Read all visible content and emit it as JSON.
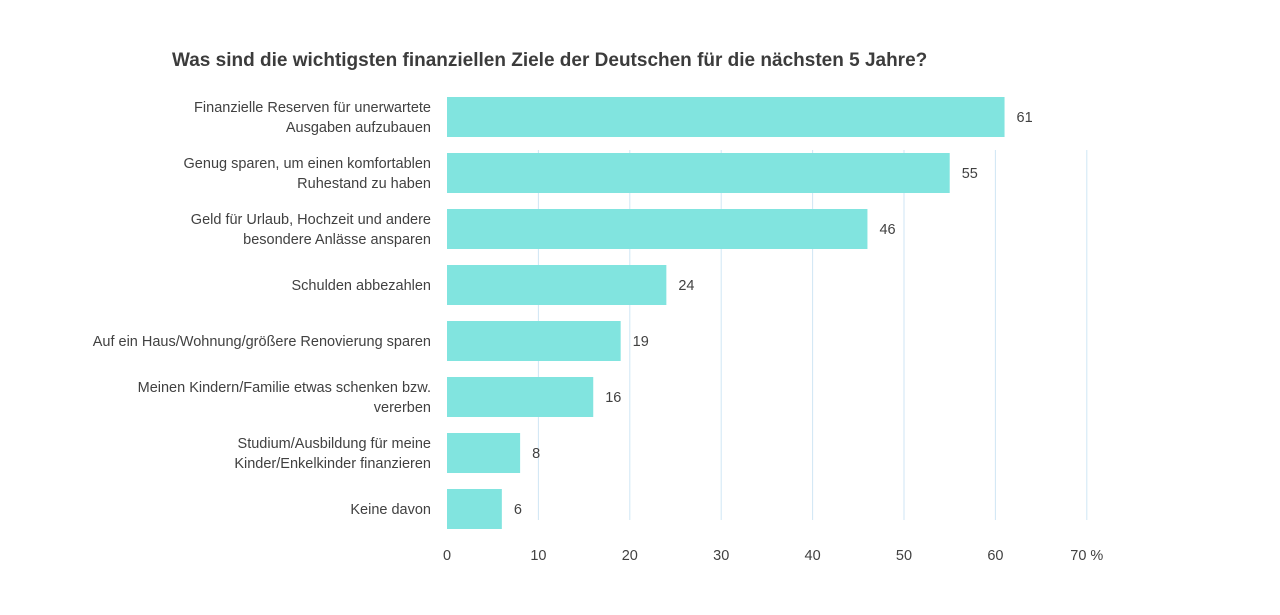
{
  "chart_data": {
    "type": "bar",
    "orientation": "horizontal",
    "title": "Was sind die wichtigsten finanziellen Ziele der Deutschen für die nächsten 5 Jahre?",
    "categories": [
      [
        "Finanzielle Reserven für unerwartete",
        "Ausgaben aufzubauen"
      ],
      [
        "Genug sparen, um einen komfortablen",
        "Ruhestand zu haben"
      ],
      [
        "Geld für Urlaub, Hochzeit und andere",
        "besondere Anlässe ansparen"
      ],
      [
        "Schulden abbezahlen"
      ],
      [
        "Auf ein Haus/Wohnung/größere Renovierung sparen"
      ],
      [
        "Meinen Kindern/Familie etwas schenken bzw.",
        "vererben"
      ],
      [
        "Studium/Ausbildung für meine",
        "Kinder/Enkelkinder finanzieren"
      ],
      [
        "Keine davon"
      ]
    ],
    "values": [
      61,
      55,
      46,
      24,
      19,
      16,
      8,
      6
    ],
    "value_labels": [
      "61",
      "55",
      "46",
      "24",
      "19",
      "16",
      "8",
      "6"
    ],
    "xlim": [
      0,
      70
    ],
    "xticks": [
      0,
      10,
      20,
      30,
      40,
      50,
      60,
      70
    ],
    "xtick_labels": [
      "0",
      "10",
      "20",
      "30",
      "40",
      "50",
      "60",
      "70 %"
    ],
    "grid": true,
    "bar_color": "#81e4df",
    "grid_color": "#cfe6f4",
    "text_color": "#414141"
  }
}
